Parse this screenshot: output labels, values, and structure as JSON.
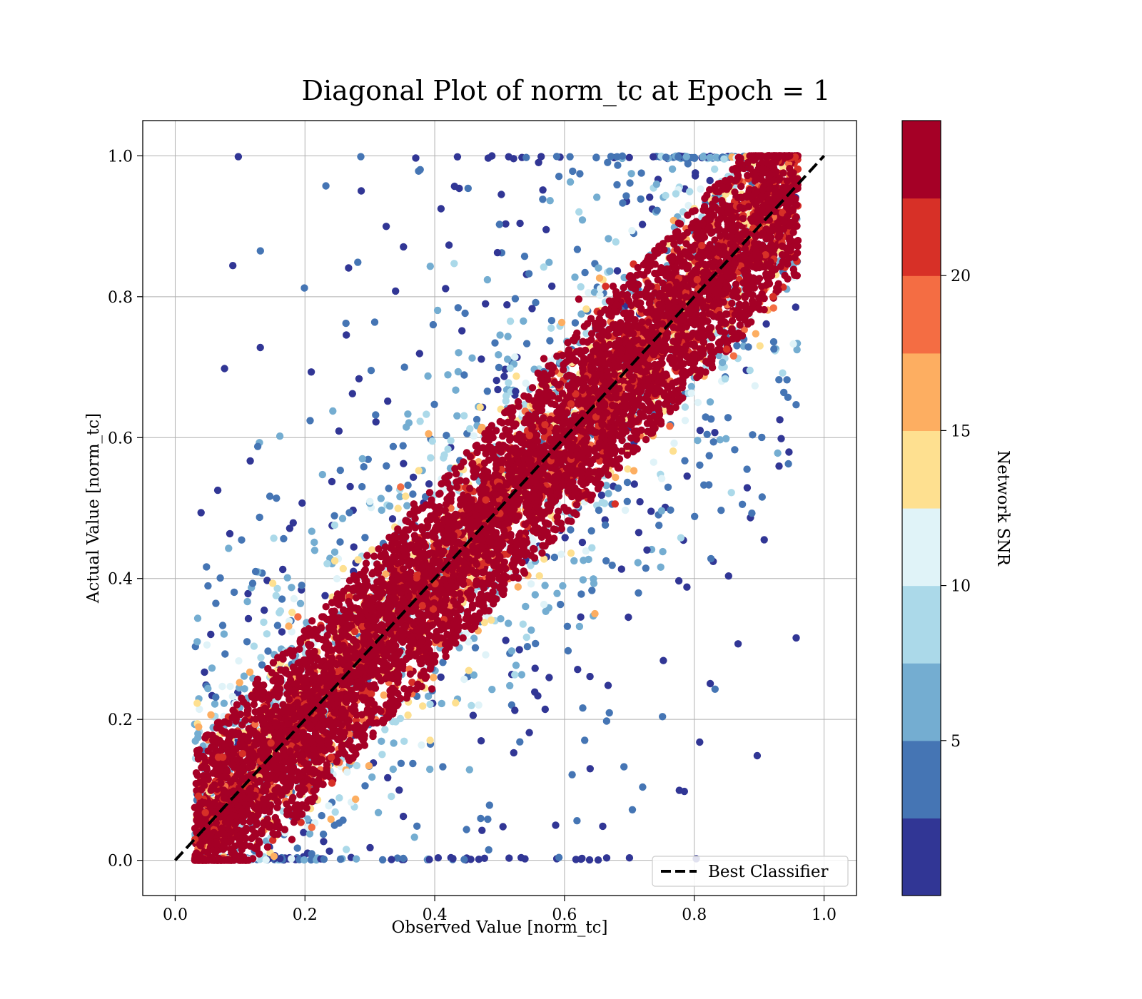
{
  "chart_data": {
    "type": "scatter",
    "title": "Diagonal Plot of norm_tc at Epoch = 1",
    "xlabel": "Observed Value [norm_tc]",
    "ylabel": "Actual Value [norm_tc]",
    "xlim": [
      -0.05,
      1.05
    ],
    "ylim": [
      -0.05,
      1.05
    ],
    "x_ticks": [
      "0.0",
      "0.2",
      "0.4",
      "0.6",
      "0.8",
      "1.0"
    ],
    "y_ticks": [
      "0.0",
      "0.2",
      "0.4",
      "0.6",
      "0.8",
      "1.0"
    ],
    "grid": true,
    "reference_line": {
      "name": "Best Classifier",
      "style": "dashed",
      "color": "#000000",
      "points": [
        [
          0,
          0
        ],
        [
          1,
          1
        ]
      ]
    },
    "legend": {
      "position": "lower-right",
      "entries": [
        "Best Classifier"
      ]
    },
    "point_cloud": {
      "description_free": true,
      "x_range": [
        0.02,
        0.96
      ],
      "y_range": [
        0.0,
        1.0
      ],
      "color_by": "Network SNR"
    },
    "colorbar": {
      "label": "Network SNR",
      "range": [
        0,
        25
      ],
      "ticks": [
        "5",
        "10",
        "15",
        "20"
      ],
      "tick_values": [
        5,
        10,
        15,
        20
      ],
      "colors": [
        "#313695",
        "#4575b4",
        "#74add1",
        "#abd9e9",
        "#e0f3f8",
        "#fee090",
        "#fdae61",
        "#f46d43",
        "#d73027",
        "#a50026"
      ]
    }
  }
}
